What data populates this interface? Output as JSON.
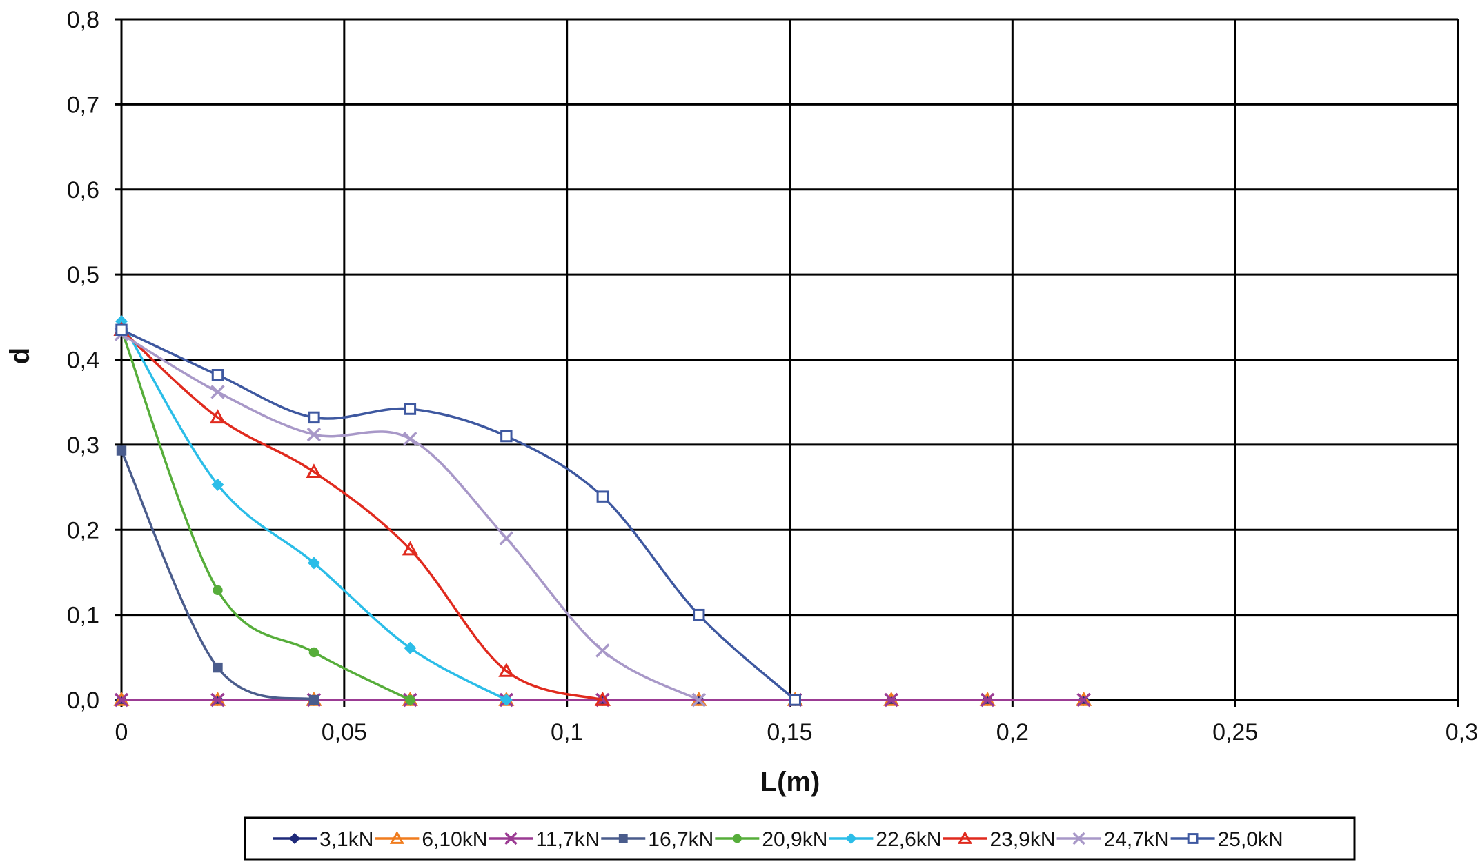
{
  "chart_data": {
    "type": "line",
    "xlabel": "L(m)",
    "ylabel": "d",
    "xlim": [
      0,
      0.3
    ],
    "ylim": [
      0,
      0.8
    ],
    "x_ticks": [
      "0",
      "0,05",
      "0,1",
      "0,15",
      "0,2",
      "0,25",
      "0,3"
    ],
    "x_tick_values": [
      0,
      0.05,
      0.1,
      0.15,
      0.2,
      0.25,
      0.3
    ],
    "y_ticks": [
      "0,0",
      "0,1",
      "0,2",
      "0,3",
      "0,4",
      "0,5",
      "0,6",
      "0,7",
      "0,8"
    ],
    "y_tick_values": [
      0,
      0.1,
      0.2,
      0.3,
      0.4,
      0.5,
      0.6,
      0.7,
      0.8
    ],
    "grid": true,
    "smooth": true,
    "legend_position": "bottom",
    "series": [
      {
        "name": "3,1kN",
        "color": "#1f2a7a",
        "marker": "diamond",
        "x": [
          0,
          0.0216,
          0.0432,
          0.0648,
          0.0864,
          0.108,
          0.1296,
          0.1512,
          0.1728,
          0.1944,
          0.216
        ],
        "y": [
          0,
          0,
          0,
          0,
          0,
          0,
          0,
          0,
          0,
          0,
          0
        ]
      },
      {
        "name": "6,10kN",
        "color": "#f07c1e",
        "marker": "triangle",
        "x": [
          0,
          0.0216,
          0.0432,
          0.0648,
          0.0864,
          0.108,
          0.1296,
          0.1512,
          0.1728,
          0.1944,
          0.216
        ],
        "y": [
          0,
          0,
          0,
          0,
          0,
          0,
          0,
          0,
          0,
          0,
          0
        ]
      },
      {
        "name": "11,7kN",
        "color": "#9b3b93",
        "marker": "x",
        "x": [
          0,
          0.0216,
          0.0432,
          0.0648,
          0.0864,
          0.108,
          0.1296,
          0.1512,
          0.1728,
          0.1944,
          0.216
        ],
        "y": [
          0,
          0,
          0,
          0,
          0,
          0,
          0,
          0,
          0,
          0,
          0
        ]
      },
      {
        "name": "16,7kN",
        "color": "#4a5c8c",
        "marker": "square",
        "x": [
          0,
          0.0216,
          0.0432
        ],
        "y": [
          0.293,
          0.038,
          0
        ]
      },
      {
        "name": "20,9kN",
        "color": "#56ad3a",
        "marker": "circle",
        "x": [
          0,
          0.0216,
          0.0432,
          0.0648
        ],
        "y": [
          0.435,
          0.129,
          0.056,
          0
        ]
      },
      {
        "name": "22,6kN",
        "color": "#2bbde8",
        "marker": "diamond",
        "x": [
          0,
          0.0216,
          0.0432,
          0.0648,
          0.0864
        ],
        "y": [
          0.445,
          0.253,
          0.161,
          0.061,
          0
        ]
      },
      {
        "name": "23,9kN",
        "color": "#e02a1e",
        "marker": "triangle",
        "x": [
          0,
          0.0216,
          0.0432,
          0.0648,
          0.0864,
          0.108
        ],
        "y": [
          0.435,
          0.332,
          0.268,
          0.177,
          0.034,
          0
        ]
      },
      {
        "name": "24,7kN",
        "color": "#a898c8",
        "marker": "x",
        "x": [
          0,
          0.0216,
          0.0432,
          0.0648,
          0.0864,
          0.108,
          0.1296
        ],
        "y": [
          0.43,
          0.362,
          0.312,
          0.307,
          0.19,
          0.058,
          0
        ]
      },
      {
        "name": "25,0kN",
        "color": "#3e58a0",
        "marker": "open-square",
        "x": [
          0,
          0.0216,
          0.0432,
          0.0648,
          0.0864,
          0.108,
          0.1296,
          0.1512
        ],
        "y": [
          0.435,
          0.382,
          0.332,
          0.342,
          0.31,
          0.239,
          0.1,
          0
        ]
      }
    ]
  }
}
